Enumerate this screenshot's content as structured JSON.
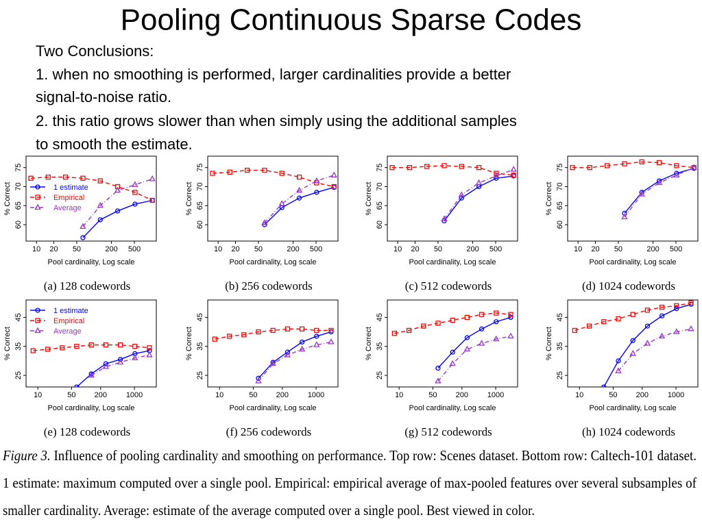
{
  "slide": {
    "title": "Pooling Continuous Sparse Codes",
    "text": [
      "Two Conclusions:",
      "1. when no smoothing is performed, larger cardinalities provide a better",
      "signal-to-noise ratio.",
      "2. this ratio grows slower than when simply using the additional samples",
      "to smooth the estimate."
    ]
  },
  "figure_caption": {
    "label": "Figure 3.",
    "lines": [
      "Influence of pooling cardinality and smoothing on performance. Top row: Scenes dataset. Bottom row: Caltech-101 dataset.",
      "1 estimate:  maximum computed over a single pool. Empirical: empirical average of max-pooled features over several subsamples of",
      "smaller cardinality. Average: estimate of the average computed over a single pool. Best viewed in color."
    ]
  },
  "chart_data": [
    {
      "type": "line",
      "caption": "(a)  128 codewords",
      "xlabel": "Pool cardinality, Log scale",
      "ylabel": "% Correct",
      "log_x": true,
      "legend": "left",
      "x": [
        8,
        16,
        32,
        64,
        128,
        256,
        512,
        1024
      ],
      "xlim": [
        6.6,
        1200
      ],
      "xticks": [
        10,
        20,
        50,
        200,
        500
      ],
      "ylim": [
        55.7,
        78
      ],
      "yticks": [
        60,
        65,
        70,
        75
      ],
      "series": [
        {
          "name": "1 estimate",
          "color": "#0000ff",
          "dash": "solid",
          "marker": "circle",
          "values": [
            null,
            null,
            null,
            56.6,
            61.3,
            63.6,
            65.4,
            66.4
          ]
        },
        {
          "name": "Empirical",
          "color": "#ff0000",
          "dash": "dashed",
          "marker": "square",
          "values": [
            72.2,
            72.5,
            72.5,
            72.2,
            71.5,
            70,
            68.5,
            66.4
          ]
        },
        {
          "name": "Average",
          "color": "#9933cc",
          "dash": "dashdot",
          "marker": "triangle",
          "values": [
            null,
            null,
            null,
            59.5,
            65,
            69,
            70.5,
            72
          ]
        }
      ]
    },
    {
      "type": "line",
      "caption": "(b)  256 codewords",
      "xlabel": "Pool cardinality, Log scale",
      "ylabel": "% Correct",
      "log_x": true,
      "x": [
        8,
        16,
        32,
        64,
        128,
        256,
        512,
        1024
      ],
      "xlim": [
        6.6,
        1200
      ],
      "xticks": [
        10,
        20,
        50,
        200,
        500
      ],
      "ylim": [
        55.7,
        78
      ],
      "yticks": [
        60,
        65,
        70,
        75
      ],
      "series": [
        {
          "color": "#0000ff",
          "dash": "solid",
          "marker": "circle",
          "values": [
            null,
            null,
            null,
            60,
            64.5,
            67,
            68.5,
            69.8
          ]
        },
        {
          "color": "#ff0000",
          "dash": "dashed",
          "marker": "square",
          "values": [
            73.5,
            73.8,
            74.3,
            74.3,
            73.5,
            72.5,
            71,
            70
          ]
        },
        {
          "color": "#9933cc",
          "dash": "dashdot",
          "marker": "triangle",
          "values": [
            null,
            null,
            null,
            60.5,
            65.5,
            69,
            71.5,
            73
          ]
        }
      ]
    },
    {
      "type": "line",
      "caption": "(c)  512 codewords",
      "xlabel": "Pool cardinality, Log scale",
      "ylabel": "% Correct",
      "log_x": true,
      "x": [
        8,
        16,
        32,
        64,
        128,
        256,
        512,
        1024
      ],
      "xlim": [
        6.6,
        1200
      ],
      "xticks": [
        10,
        20,
        50,
        200,
        500
      ],
      "ylim": [
        55.7,
        78
      ],
      "yticks": [
        60,
        65,
        70,
        75
      ],
      "series": [
        {
          "color": "#0000ff",
          "dash": "solid",
          "marker": "circle",
          "values": [
            null,
            null,
            null,
            61,
            67,
            70,
            72.2,
            72.8
          ]
        },
        {
          "color": "#ff0000",
          "dash": "dashed",
          "marker": "square",
          "values": [
            75,
            75,
            75.3,
            75.5,
            75.3,
            75,
            73.5,
            73
          ]
        },
        {
          "color": "#9933cc",
          "dash": "dashdot",
          "marker": "triangle",
          "values": [
            null,
            null,
            null,
            61.5,
            67.8,
            71,
            72.8,
            74.5
          ]
        }
      ]
    },
    {
      "type": "line",
      "caption": "(d)  1024 codewords",
      "xlabel": "Pool cardinality, Log scale",
      "ylabel": "% Correct",
      "log_x": true,
      "x": [
        8,
        16,
        32,
        64,
        128,
        256,
        512,
        1024
      ],
      "xlim": [
        6.6,
        1200
      ],
      "xticks": [
        10,
        20,
        50,
        200,
        500
      ],
      "ylim": [
        55.7,
        78
      ],
      "yticks": [
        60,
        65,
        70,
        75
      ],
      "series": [
        {
          "color": "#0000ff",
          "dash": "solid",
          "marker": "circle",
          "values": [
            null,
            null,
            null,
            63,
            68.5,
            71.5,
            73.5,
            74.8
          ]
        },
        {
          "color": "#ff0000",
          "dash": "dashed",
          "marker": "square",
          "values": [
            75,
            75,
            75.5,
            76,
            76.5,
            76.3,
            75.5,
            75
          ]
        },
        {
          "color": "#9933cc",
          "dash": "dashdot",
          "marker": "triangle",
          "values": [
            null,
            null,
            null,
            62,
            68,
            71,
            73,
            75
          ]
        }
      ]
    },
    {
      "type": "line",
      "caption": "(e)  128 codewords",
      "xlabel": "Pool cardinality, Log scale",
      "ylabel": "% Correct",
      "log_x": true,
      "legend": "upper left",
      "x": [
        8,
        16,
        32,
        64,
        128,
        256,
        512,
        1024,
        2048
      ],
      "xlim": [
        5.7,
        2840
      ],
      "xticks": [
        10,
        50,
        200,
        1000
      ],
      "ylim": [
        21,
        51
      ],
      "yticks": [
        25,
        35,
        45
      ],
      "series": [
        {
          "name": "1 estimate",
          "color": "#0000ff",
          "dash": "solid",
          "marker": "circle",
          "values": [
            null,
            null,
            null,
            21,
            25.5,
            29,
            30.5,
            32.5,
            33.5
          ]
        },
        {
          "name": "Empirical",
          "color": "#ff0000",
          "dash": "dashed",
          "marker": "square",
          "values": [
            33.5,
            34,
            34.5,
            35,
            35.5,
            35.5,
            35.5,
            35,
            34.5
          ]
        },
        {
          "name": "Average",
          "color": "#9933cc",
          "dash": "dashdot",
          "marker": "triangle",
          "values": [
            null,
            null,
            null,
            null,
            25,
            28,
            29.5,
            31,
            32
          ]
        }
      ]
    },
    {
      "type": "line",
      "caption": "(f)  256 codewords",
      "xlabel": "Pool cardinality, Log scale",
      "ylabel": "% Correct",
      "log_x": true,
      "x": [
        8,
        16,
        32,
        64,
        128,
        256,
        512,
        1024,
        2048
      ],
      "xlim": [
        5.7,
        2840
      ],
      "xticks": [
        10,
        50,
        200,
        1000
      ],
      "ylim": [
        21,
        51
      ],
      "yticks": [
        25,
        35,
        45
      ],
      "series": [
        {
          "color": "#0000ff",
          "dash": "solid",
          "marker": "circle",
          "values": [
            null,
            null,
            null,
            24,
            29.5,
            33,
            36.5,
            38.5,
            40
          ]
        },
        {
          "color": "#ff0000",
          "dash": "dashed",
          "marker": "square",
          "values": [
            37.5,
            38.5,
            39,
            40,
            40.5,
            41,
            41,
            40.5,
            40.5
          ]
        },
        {
          "color": "#9933cc",
          "dash": "dashdot",
          "marker": "triangle",
          "values": [
            null,
            null,
            null,
            23,
            29,
            32,
            34,
            35.5,
            36.5
          ]
        }
      ]
    },
    {
      "type": "line",
      "caption": "(g)  512 codewords",
      "xlabel": "Pool cardinality, Log scale",
      "ylabel": "% Correct",
      "log_x": true,
      "x": [
        8,
        16,
        32,
        64,
        128,
        256,
        512,
        1024,
        2048
      ],
      "xlim": [
        5.7,
        2840
      ],
      "xticks": [
        10,
        50,
        200,
        1000
      ],
      "ylim": [
        21,
        51
      ],
      "yticks": [
        25,
        35,
        45
      ],
      "series": [
        {
          "color": "#0000ff",
          "dash": "solid",
          "marker": "circle",
          "values": [
            null,
            null,
            null,
            27.5,
            33,
            38,
            41,
            43.5,
            45
          ]
        },
        {
          "color": "#ff0000",
          "dash": "dashed",
          "marker": "square",
          "values": [
            39.5,
            40.5,
            42,
            43,
            44,
            45,
            46,
            46.5,
            46
          ]
        },
        {
          "color": "#9933cc",
          "dash": "dashdot",
          "marker": "triangle",
          "values": [
            null,
            null,
            null,
            23,
            29,
            34,
            36,
            37.5,
            38.5
          ]
        }
      ]
    },
    {
      "type": "line",
      "caption": "(h)  1024 codewords",
      "xlabel": "Pool cardinality, Log scale",
      "ylabel": "% Correct",
      "log_x": true,
      "x": [
        8,
        16,
        32,
        64,
        128,
        256,
        512,
        1024,
        2048
      ],
      "xlim": [
        5.7,
        2840
      ],
      "xticks": [
        10,
        50,
        200,
        1000
      ],
      "ylim": [
        21,
        51
      ],
      "yticks": [
        25,
        35,
        45
      ],
      "series": [
        {
          "color": "#0000ff",
          "dash": "solid",
          "marker": "circle",
          "values": [
            null,
            null,
            21,
            30,
            37,
            42,
            45.5,
            48,
            49.5
          ]
        },
        {
          "color": "#ff0000",
          "dash": "dashed",
          "marker": "square",
          "values": [
            40.5,
            42,
            43.5,
            44.5,
            46,
            47.5,
            48.5,
            49,
            50
          ]
        },
        {
          "color": "#9933cc",
          "dash": "dashdot",
          "marker": "triangle",
          "values": [
            null,
            null,
            null,
            26.5,
            32.5,
            36,
            38.5,
            40,
            41
          ]
        }
      ]
    }
  ]
}
